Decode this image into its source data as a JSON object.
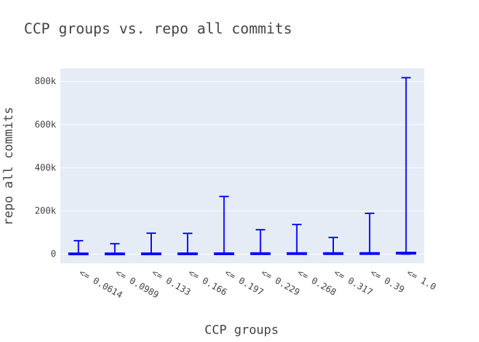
{
  "chart_data": {
    "type": "box",
    "title": "CCP groups vs. repo all commits",
    "xlabel": "CCP groups",
    "ylabel": "repo all commits",
    "categories": [
      "<= 0.0614",
      "<= 0.0989",
      "<= 0.133",
      "<= 0.166",
      "<= 0.197",
      "<= 0.229",
      "<= 0.268",
      "<= 0.317",
      "<= 0.39",
      "<= 1.0"
    ],
    "series": [
      {
        "values": [
          {
            "min": 0,
            "q1": 200,
            "median": 600,
            "q3": 1500,
            "max": 62000
          },
          {
            "min": 0,
            "q1": 200,
            "median": 600,
            "q3": 1500,
            "max": 48000
          },
          {
            "min": 0,
            "q1": 200,
            "median": 700,
            "q3": 1800,
            "max": 97000
          },
          {
            "min": 0,
            "q1": 300,
            "median": 900,
            "q3": 2200,
            "max": 96000
          },
          {
            "min": 0,
            "q1": 300,
            "median": 1000,
            "q3": 2500,
            "max": 267000
          },
          {
            "min": 0,
            "q1": 400,
            "median": 1200,
            "q3": 3500,
            "max": 113000
          },
          {
            "min": 0,
            "q1": 400,
            "median": 1300,
            "q3": 4000,
            "max": 137000
          },
          {
            "min": 0,
            "q1": 400,
            "median": 1300,
            "q3": 4000,
            "max": 77000
          },
          {
            "min": 0,
            "q1": 500,
            "median": 1600,
            "q3": 4500,
            "max": 189000
          },
          {
            "min": 0,
            "q1": 800,
            "median": 2500,
            "q3": 7500,
            "max": 818000
          }
        ]
      }
    ],
    "yticks": [
      {
        "value": 0,
        "label": "0"
      },
      {
        "value": 200000,
        "label": "200k"
      },
      {
        "value": 400000,
        "label": "400k"
      },
      {
        "value": 600000,
        "label": "600k"
      },
      {
        "value": 800000,
        "label": "800k"
      }
    ],
    "ylim": [
      -43000,
      861000
    ],
    "grid": true,
    "colors": {
      "box": "#0000ff",
      "plot_bg": "#e5ecf6",
      "grid": "#ffffff",
      "text": "#444444"
    }
  }
}
